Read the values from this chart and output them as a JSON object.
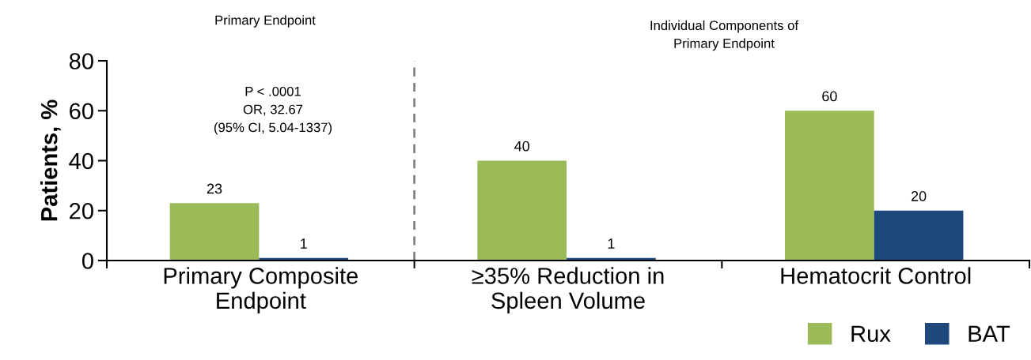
{
  "chart_data": {
    "type": "bar",
    "ylabel": "Patients, %",
    "categories": [
      "Primary Composite\nEndpoint",
      "≥35% Reduction in\nSpleen Volume",
      "Hematocrit Control"
    ],
    "series": [
      {
        "name": "Rux",
        "color": "#9bbb59",
        "values": [
          23,
          40,
          60
        ]
      },
      {
        "name": "BAT",
        "color": "#1f497d",
        "values": [
          1,
          1,
          20
        ]
      }
    ],
    "ylim": [
      0,
      80
    ],
    "yticks": [
      0,
      20,
      40,
      60,
      80
    ],
    "grid": false,
    "legend": "bottom right",
    "data_labels": true,
    "annotations": [
      "Primary Endpoint",
      "Individual Components of\nPrimary Endpoint",
      "P < .0001\nOR, 32.67\n(95% CI, 5.04-1337)"
    ]
  }
}
